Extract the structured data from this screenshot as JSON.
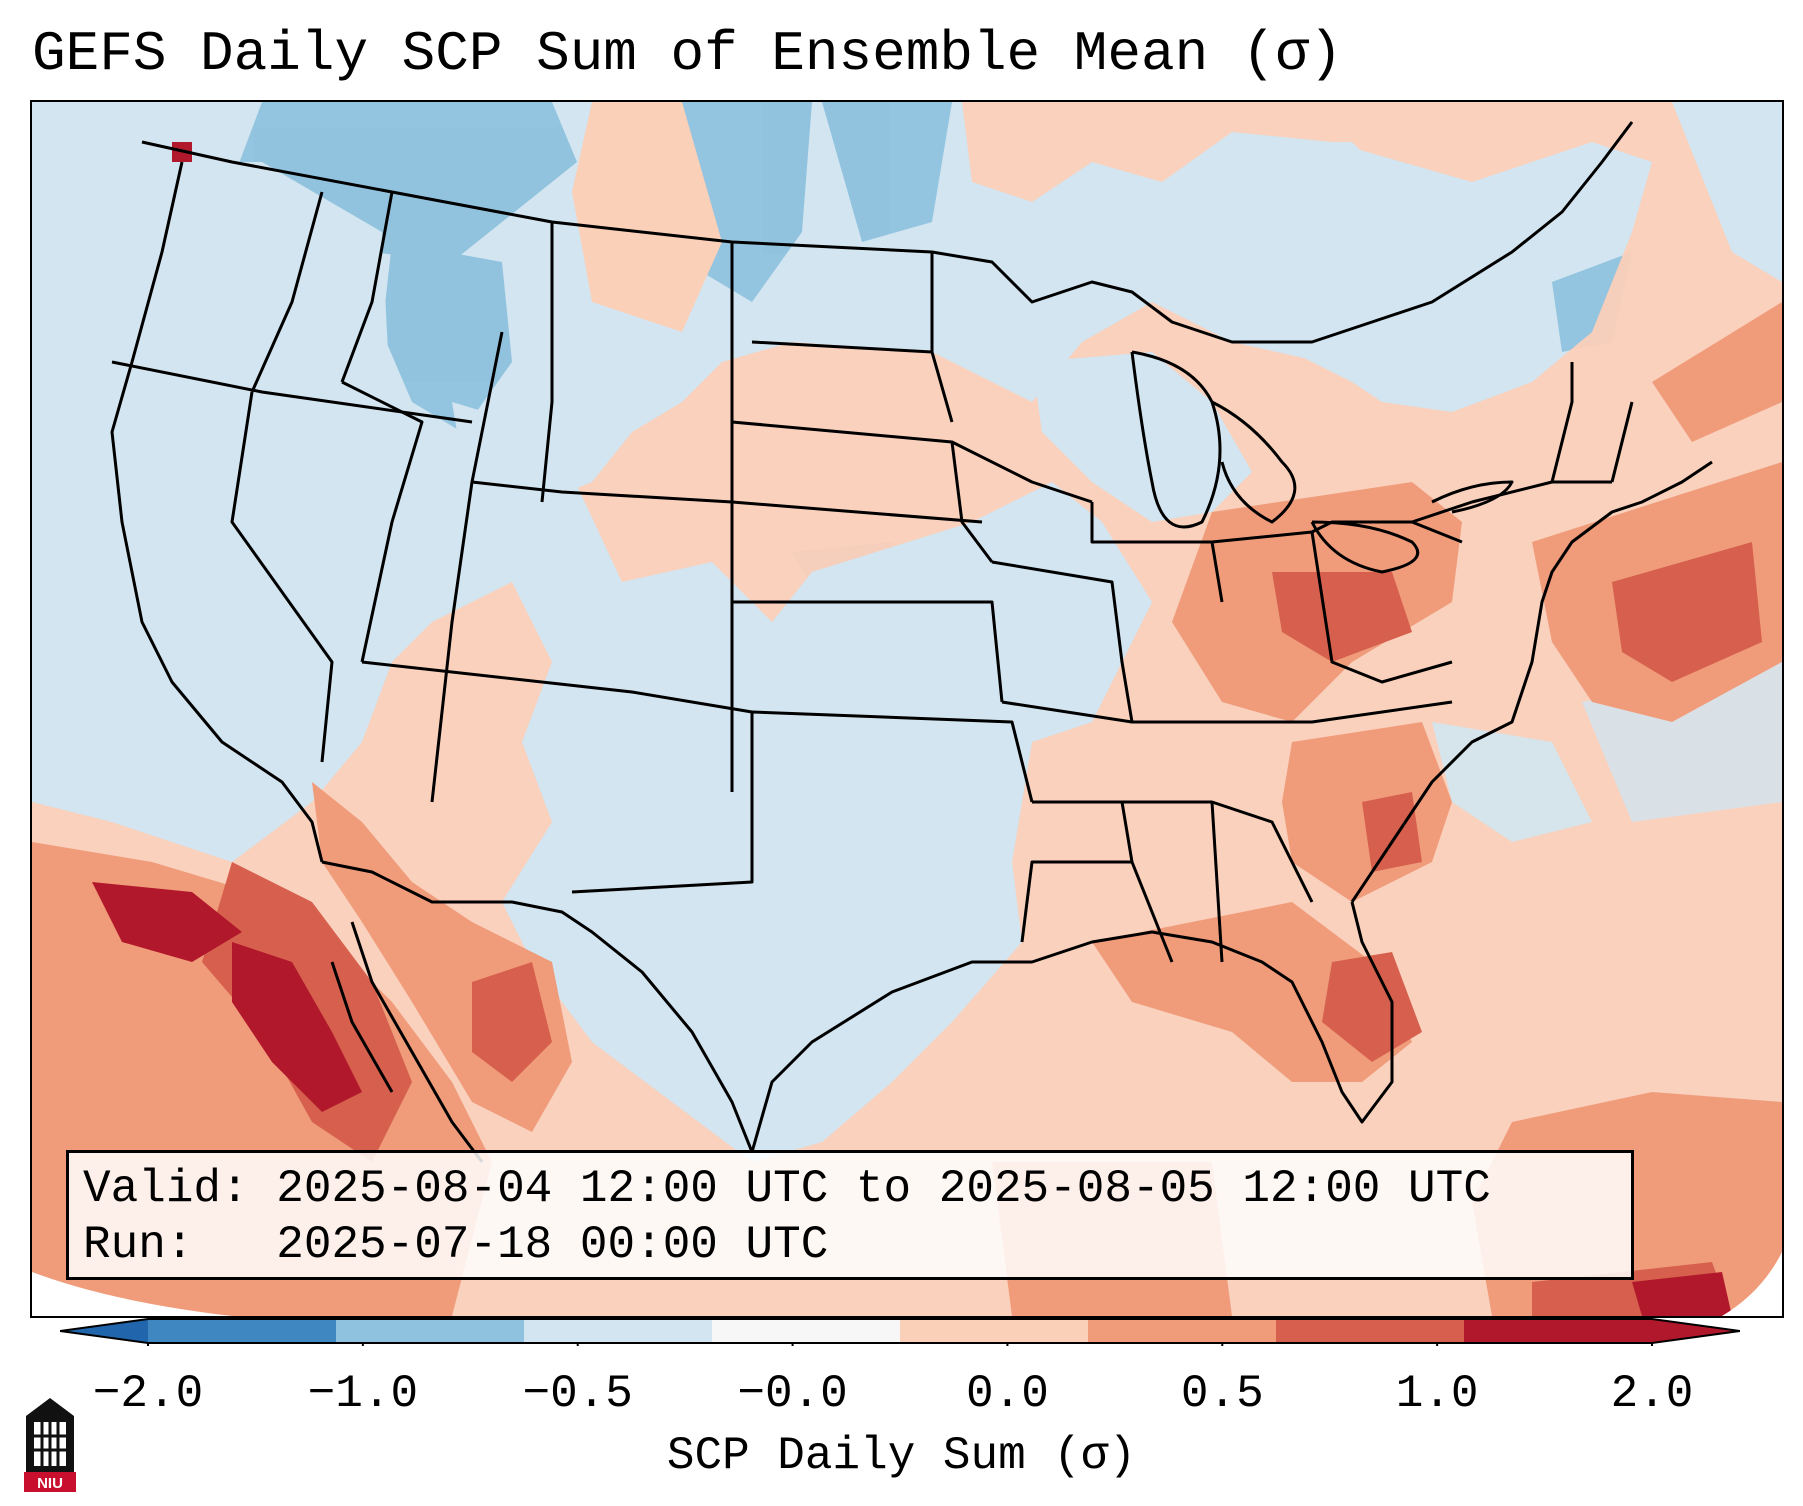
{
  "title": "GEFS Daily SCP Sum of Ensemble Mean (σ)",
  "info": {
    "valid_line": "Valid: 2025-08-04 12:00 UTC to 2025-08-05 12:00 UTC",
    "run_line": "Run:   2025-07-18 00:00 UTC"
  },
  "colorbar": {
    "label": "SCP Daily Sum (σ)",
    "ticks": [
      "−2.0",
      "−1.0",
      "−0.5",
      "−0.0",
      "0.0",
      "0.5",
      "1.0",
      "2.0"
    ],
    "colors": [
      "#3f87c1",
      "#8fc2de",
      "#d2e5f0",
      "#f7f7f7",
      "#fbd0b9",
      "#f09c7b",
      "#d6604d",
      "#b2182b"
    ],
    "extend_min_color": "#2166ac",
    "extend_max_color": "#b2182b"
  },
  "map": {
    "background_color": "#d2e5f0",
    "line_color": "#000000"
  },
  "logo": {
    "text": "NIU",
    "color": "#c8102e"
  }
}
